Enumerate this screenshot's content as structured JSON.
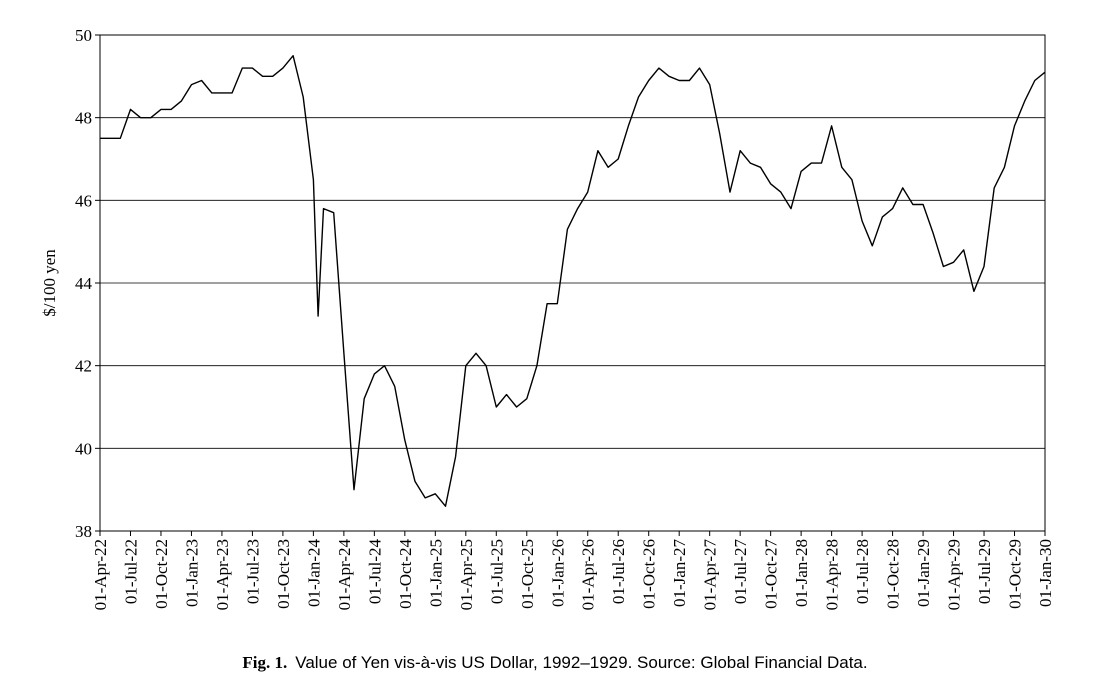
{
  "chart_data": {
    "type": "line",
    "y_label": "$/100 yen",
    "caption_label": "Fig. 1.",
    "caption": "Value of Yen vis-à-vis US Dollar, 1992–1929. Source: Global Financial Data.",
    "xlim": [
      "01-Apr-22",
      "01-Jan-30"
    ],
    "xticks": [
      "01-Apr-22",
      "01-Jul-22",
      "01-Oct-22",
      "01-Jan-23",
      "01-Apr-23",
      "01-Jul-23",
      "01-Oct-23",
      "01-Jan-24",
      "01-Apr-24",
      "01-Jul-24",
      "01-Oct-24",
      "01-Jan-25",
      "01-Apr-25",
      "01-Jul-25",
      "01-Oct-25",
      "01-Jan-26",
      "01-Apr-26",
      "01-Jul-26",
      "01-Oct-26",
      "01-Jan-27",
      "01-Apr-27",
      "01-Jul-27",
      "01-Oct-27",
      "01-Jan-28",
      "01-Apr-28",
      "01-Jul-28",
      "01-Oct-28",
      "01-Jan-29",
      "01-Apr-29",
      "01-Jul-29",
      "01-Oct-29",
      "01-Jan-30"
    ],
    "ylim": [
      38,
      50
    ],
    "yticks": [
      38,
      40,
      42,
      44,
      46,
      48,
      50
    ],
    "grid": true,
    "series": [
      {
        "color": "#000000",
        "x": [
          "01-Apr-22",
          "01-May-22",
          "01-Jun-22",
          "01-Jul-22",
          "01-Aug-22",
          "01-Sep-22",
          "01-Oct-22",
          "01-Nov-22",
          "01-Dec-22",
          "01-Jan-23",
          "01-Feb-23",
          "01-Mar-23",
          "01-Apr-23",
          "01-May-23",
          "01-Jun-23",
          "01-Jul-23",
          "01-Aug-23",
          "01-Sep-23",
          "01-Oct-23",
          "01-Nov-23",
          "01-Dec-23",
          "01-Jan-24",
          "15-Jan-24",
          "01-Feb-24",
          "01-Mar-24",
          "01-Apr-24",
          "01-May-24",
          "01-Jun-24",
          "01-Jul-24",
          "01-Aug-24",
          "01-Sep-24",
          "01-Oct-24",
          "01-Nov-24",
          "01-Dec-24",
          "01-Jan-25",
          "01-Feb-25",
          "01-Mar-25",
          "01-Apr-25",
          "01-May-25",
          "01-Jun-25",
          "01-Jul-25",
          "01-Aug-25",
          "01-Sep-25",
          "01-Oct-25",
          "01-Nov-25",
          "01-Dec-25",
          "01-Jan-26",
          "01-Feb-26",
          "01-Mar-26",
          "01-Apr-26",
          "01-May-26",
          "01-Jun-26",
          "01-Jul-26",
          "01-Aug-26",
          "01-Sep-26",
          "01-Oct-26",
          "01-Nov-26",
          "01-Dec-26",
          "01-Jan-27",
          "01-Feb-27",
          "01-Mar-27",
          "01-Apr-27",
          "01-May-27",
          "01-Jun-27",
          "01-Jul-27",
          "01-Aug-27",
          "01-Sep-27",
          "01-Oct-27",
          "01-Nov-27",
          "01-Dec-27",
          "01-Jan-28",
          "01-Feb-28",
          "01-Mar-28",
          "01-Apr-28",
          "01-May-28",
          "01-Jun-28",
          "01-Jul-28",
          "01-Aug-28",
          "01-Sep-28",
          "01-Oct-28",
          "01-Nov-28",
          "01-Dec-28",
          "01-Jan-29",
          "01-Feb-29",
          "01-Mar-29",
          "01-Apr-29",
          "01-May-29",
          "01-Jun-29",
          "01-Jul-29",
          "01-Aug-29",
          "01-Sep-29",
          "01-Oct-29",
          "01-Nov-29",
          "01-Dec-29",
          "01-Jan-30"
        ],
        "values": [
          47.5,
          47.5,
          47.5,
          48.2,
          48.0,
          48.0,
          48.2,
          48.2,
          48.4,
          48.8,
          48.9,
          48.6,
          48.6,
          48.6,
          49.2,
          49.2,
          49.0,
          49.0,
          49.2,
          49.5,
          48.5,
          46.5,
          43.2,
          45.8,
          45.7,
          42.3,
          39.0,
          41.2,
          41.8,
          42.0,
          41.5,
          40.2,
          39.2,
          38.8,
          38.9,
          38.6,
          39.8,
          42.0,
          42.3,
          42.0,
          41.0,
          41.3,
          41.0,
          41.2,
          42.0,
          43.5,
          43.5,
          45.3,
          45.8,
          46.2,
          47.2,
          46.8,
          47.0,
          47.8,
          48.5,
          48.9,
          49.2,
          49.0,
          48.9,
          48.9,
          49.2,
          48.8,
          47.6,
          46.2,
          47.2,
          46.9,
          46.8,
          46.4,
          46.2,
          45.8,
          46.7,
          46.9,
          46.9,
          47.8,
          46.8,
          46.5,
          45.5,
          44.9,
          45.6,
          45.8,
          46.3,
          45.9,
          45.9,
          45.2,
          44.4,
          44.5,
          44.8,
          43.8,
          44.4,
          46.3,
          46.8,
          47.8,
          48.4,
          48.9,
          49.1
        ]
      }
    ]
  }
}
